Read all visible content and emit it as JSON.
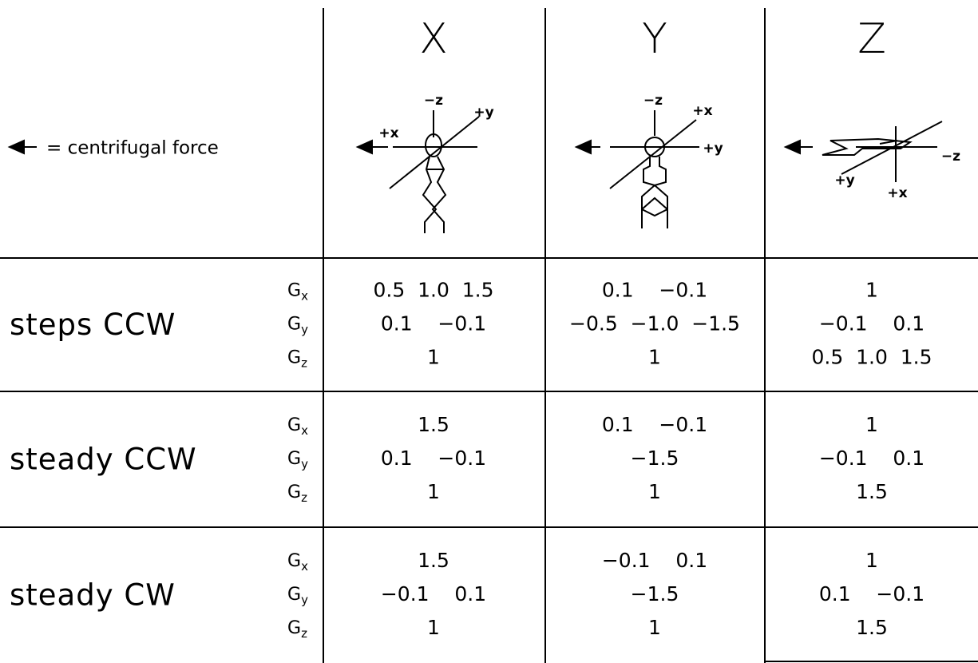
{
  "header": {
    "legend": "= centrifugal force",
    "columns": [
      {
        "title": "X",
        "axis_labels": [
          "−z",
          "+y",
          "+x"
        ]
      },
      {
        "title": "Y",
        "axis_labels": [
          "−z",
          "+x",
          "+y"
        ]
      },
      {
        "title": "Z",
        "axis_labels": [
          "−z",
          "+y",
          "+x"
        ]
      }
    ]
  },
  "rows": [
    {
      "label": "steps CCW",
      "g_labels": [
        {
          "symbol": "G",
          "subscript": "x"
        },
        {
          "symbol": "G",
          "subscript": "y"
        },
        {
          "symbol": "G",
          "subscript": "z"
        }
      ],
      "cells": [
        [
          "0.5  1.0  1.5",
          "0.1    −0.1",
          "1"
        ],
        [
          "0.1    −0.1",
          "−0.5  −1.0  −1.5",
          "1"
        ],
        [
          "1",
          "−0.1    0.1",
          "0.5  1.0  1.5"
        ]
      ]
    },
    {
      "label": "steady CCW",
      "g_labels": [
        {
          "symbol": "G",
          "subscript": "x"
        },
        {
          "symbol": "G",
          "subscript": "y"
        },
        {
          "symbol": "G",
          "subscript": "z"
        }
      ],
      "cells": [
        [
          "1.5",
          "0.1    −0.1",
          "1"
        ],
        [
          "0.1    −0.1",
          "−1.5",
          "1"
        ],
        [
          "1",
          "−0.1    0.1",
          "1.5"
        ]
      ]
    },
    {
      "label": "steady CW",
      "g_labels": [
        {
          "symbol": "G",
          "subscript": "x"
        },
        {
          "symbol": "G",
          "subscript": "y"
        },
        {
          "symbol": "G",
          "subscript": "z"
        }
      ],
      "cells": [
        [
          "1.5",
          "−0.1    0.1",
          "1"
        ],
        [
          "−0.1    0.1",
          "−1.5",
          "1"
        ],
        [
          "1",
          "0.1    −0.1",
          "1.5"
        ]
      ]
    }
  ]
}
